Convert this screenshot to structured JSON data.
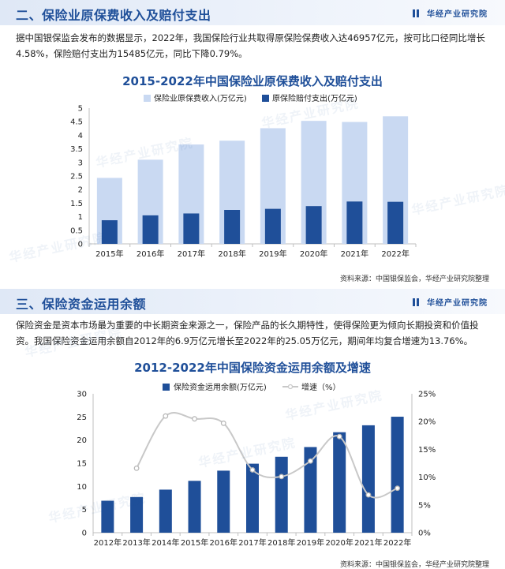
{
  "section1": {
    "title": "二、保险业原保费收入及赔付支出",
    "brand": "华经产业研究院",
    "paragraph": "据中国银保监会发布的数据显示，2022年，我国保险行业共取得原保险保费收入达46957亿元，按可比口径同比增长4.58%，保险赔付支出为15485亿元，同比下降0.79%。",
    "source": "资料来源：中国银保监会，华经产业研究院整理"
  },
  "section2": {
    "title": "三、保险资金运用余额",
    "brand": "华经产业研究院",
    "paragraph": "保险资金是资本市场最为重要的中长期资金来源之一，保险产品的长久期特性，使得保险更为倾向长期投资和价值投资。我国保险资金运用余额自2012年的6.9万亿元增长至2022年的25.05万亿元，期间年均复合增速为13.76%。",
    "source": "资料来源：中国银保监会，华经产业研究院整理"
  },
  "watermark": "华经产业研究院",
  "chart_data": [
    {
      "type": "bar",
      "title": "2015-2022年中国保险业原保费收入及赔付支出",
      "categories": [
        "2015年",
        "2016年",
        "2017年",
        "2018年",
        "2019年",
        "2020年",
        "2021年",
        "2022年"
      ],
      "series": [
        {
          "name": "保险业原保费收入(万亿元)",
          "values": [
            2.43,
            3.1,
            3.66,
            3.8,
            4.26,
            4.53,
            4.49,
            4.7
          ],
          "color": "#c9d9f2"
        },
        {
          "name": "原保险赔付支出(万亿元)",
          "values": [
            0.87,
            1.05,
            1.12,
            1.25,
            1.29,
            1.39,
            1.56,
            1.55
          ],
          "color": "#1f4f99"
        }
      ],
      "ylim": [
        0,
        5
      ],
      "yticks": [
        "0",
        "0.5",
        "1",
        "1.5",
        "2",
        "2.5",
        "3",
        "3.5",
        "4",
        "4.5",
        "5"
      ],
      "legend": "top"
    },
    {
      "type": "bar+line",
      "title": "2012-2022年中国保险资金运用余额及增速",
      "categories": [
        "2012年",
        "2013年",
        "2014年",
        "2015年",
        "2016年",
        "2017年",
        "2018年",
        "2019年",
        "2020年",
        "2021年",
        "2022年"
      ],
      "bar_series": {
        "name": "保险资金运用余额(万亿元)",
        "values": [
          6.9,
          7.7,
          9.3,
          11.2,
          13.4,
          14.9,
          16.4,
          18.5,
          21.7,
          23.2,
          25.05
        ],
        "color": "#1f4f99"
      },
      "line_series": {
        "name": "增速（%）",
        "values": [
          null,
          11.6,
          21.0,
          20.5,
          19.7,
          11.3,
          10.1,
          12.9,
          17.3,
          6.8,
          8.0
        ],
        "color": "#c8c8c8"
      },
      "ylim_left": [
        0,
        30
      ],
      "yticks_left": [
        "0",
        "5",
        "10",
        "15",
        "20",
        "25",
        "30"
      ],
      "ylim_right": [
        0,
        25
      ],
      "yticks_right": [
        "0%",
        "5%",
        "10%",
        "15%",
        "20%",
        "25%"
      ],
      "legend": "top"
    }
  ]
}
